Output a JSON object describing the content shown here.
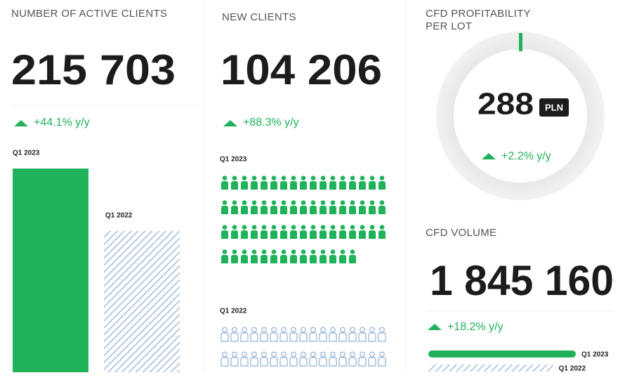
{
  "active_clients": {
    "title": "NUMBER OF ACTIVE CLIENTS",
    "value": "215 703",
    "change": "+44.1% y/y",
    "bars": [
      {
        "label": "Q1 2023",
        "value": 215703
      },
      {
        "label": "Q1 2022",
        "value": 149690
      }
    ]
  },
  "new_clients": {
    "title": "NEW CLIENTS",
    "value": "104 206",
    "change": "+88.3% y/y",
    "groups": [
      {
        "label": "Q1 2023",
        "icons": 65
      },
      {
        "label": "Q1 2022",
        "icons": 34
      }
    ]
  },
  "cfd_profitability": {
    "title_lines": [
      "CFD PROFITABILITY",
      "PER LOT"
    ],
    "value": "288",
    "unit": "PLN",
    "change": "+2.2% y/y"
  },
  "cfd_volume": {
    "title": "CFD VOLUME",
    "value": "1 845 160",
    "change": "+18.2% y/y",
    "bars": [
      {
        "label": "Q1 2023",
        "value": 1845160
      },
      {
        "label": "Q1 2022",
        "value": 1561049
      }
    ]
  }
}
